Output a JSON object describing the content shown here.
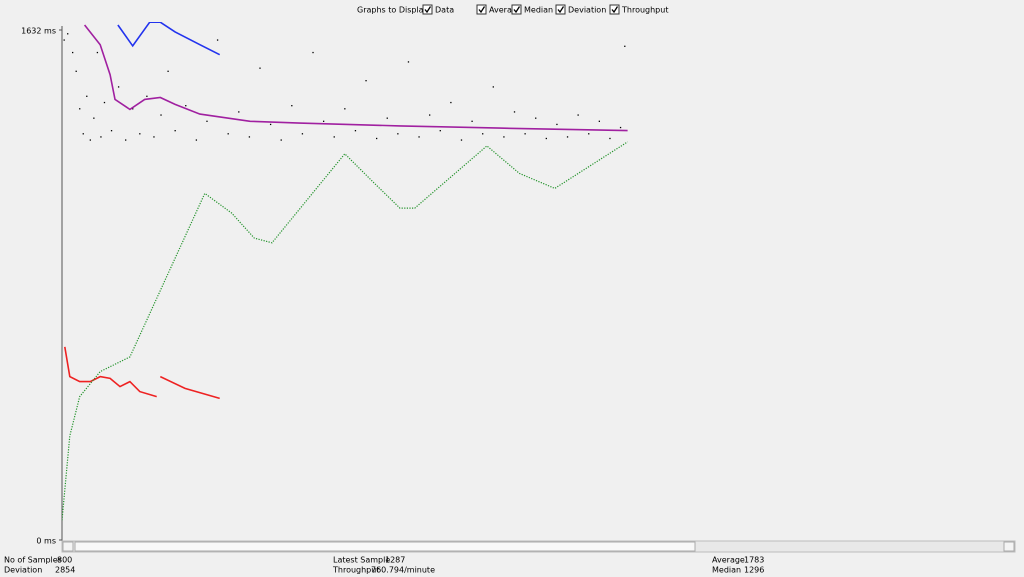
{
  "header": {
    "title": "Graphs to Display",
    "options": [
      {
        "label": "Data",
        "color": "#000000",
        "checked": true,
        "style": "scatter",
        "x": [
          3,
          8,
          15,
          20,
          25,
          30,
          35,
          40,
          45,
          50,
          55,
          60,
          70,
          80,
          90,
          100,
          110,
          120,
          130,
          140,
          150,
          160,
          175,
          190,
          205,
          220,
          235,
          250,
          265,
          280,
          295,
          310,
          325,
          340,
          355,
          370,
          385,
          400,
          415,
          430,
          445,
          460,
          475,
          490,
          505,
          520,
          535,
          550,
          565,
          580,
          595,
          610,
          625,
          640,
          655,
          670,
          685,
          700,
          715,
          730,
          745,
          760,
          775,
          790,
          796
        ],
        "values": [
          1600,
          1620,
          1560,
          1500,
          1380,
          1300,
          1420,
          1280,
          1350,
          1560,
          1290,
          1400,
          1310,
          1450,
          1280,
          1380,
          1300,
          1420,
          1290,
          1360,
          1500,
          1310,
          1390,
          1280,
          1340,
          1600,
          1300,
          1370,
          1290,
          1510,
          1330,
          1280,
          1390,
          1300,
          1560,
          1340,
          1290,
          1380,
          1310,
          1470,
          1285,
          1350,
          1300,
          1530,
          1290,
          1360,
          1310,
          1400,
          1280,
          1340,
          1300,
          1450,
          1290,
          1370,
          1300,
          1350,
          1285,
          1330,
          1290,
          1360,
          1300,
          1340,
          1285,
          1320,
          1580
        ]
      },
      {
        "label": "Average",
        "color": "#2233ee",
        "checked": true,
        "style": "line",
        "x": [
          79,
          100,
          124,
          139,
          160,
          195,
          223
        ],
        "values": [
          1648,
          1581,
          1657,
          1657,
          1626,
          1585,
          1553
        ]
      },
      {
        "label": "Median",
        "color": "#a020a0",
        "checked": true,
        "style": "line",
        "x": [
          32,
          54,
          68,
          75,
          96,
          117,
          139,
          160,
          195,
          266,
          336,
          478,
          619,
          800
        ],
        "values": [
          1648,
          1585,
          1489,
          1410,
          1378,
          1410,
          1416,
          1394,
          1363,
          1340,
          1334,
          1325,
          1318,
          1310
        ]
      },
      {
        "label": "Deviation",
        "color": "#ee2222",
        "checked": true,
        "style": "line",
        "x": [
          4,
          11,
          25,
          40,
          54,
          68,
          82,
          96,
          110,
          134,
          null,
          139,
          174,
          223
        ],
        "values": [
          618,
          523,
          507,
          507,
          523,
          517,
          491,
          507,
          475,
          459,
          null,
          523,
          485,
          453
        ]
      },
      {
        "label": "Throughput",
        "color": "#22922a",
        "checked": true,
        "style": "line",
        "x": [
          0,
          11,
          25,
          54,
          96,
          202,
          240,
          272,
          297,
          400,
          442,
          478,
          499,
          601,
          647,
          697,
          800
        ],
        "values": [
          63,
          333,
          459,
          539,
          586,
          1109,
          1046,
          966,
          951,
          1236,
          1141,
          1062,
          1062,
          1261,
          1173,
          1125,
          1274
        ]
      }
    ]
  },
  "graph": {
    "ylim": [
      0,
      1632
    ],
    "xlim": [
      0,
      1348
    ],
    "yticks": [
      {
        "value": 1632,
        "label": "1632 ms"
      },
      {
        "value": 0,
        "label": "0 ms"
      }
    ]
  },
  "footer": {
    "stats": [
      {
        "label": "No of Samples",
        "value": 800,
        "color": "#000000"
      },
      {
        "label": "Deviation",
        "value": 2854,
        "color": "#ee2222"
      },
      {
        "label": "Latest Sample",
        "value": 1287,
        "color": "#000000"
      },
      {
        "label": "Throughput",
        "value": "760.794/minute",
        "color": "#22922a"
      },
      {
        "label": "Average",
        "value": 1783,
        "color": "#2233ee"
      },
      {
        "label": "Median",
        "value": 1296,
        "color": "#a020a0"
      }
    ]
  }
}
